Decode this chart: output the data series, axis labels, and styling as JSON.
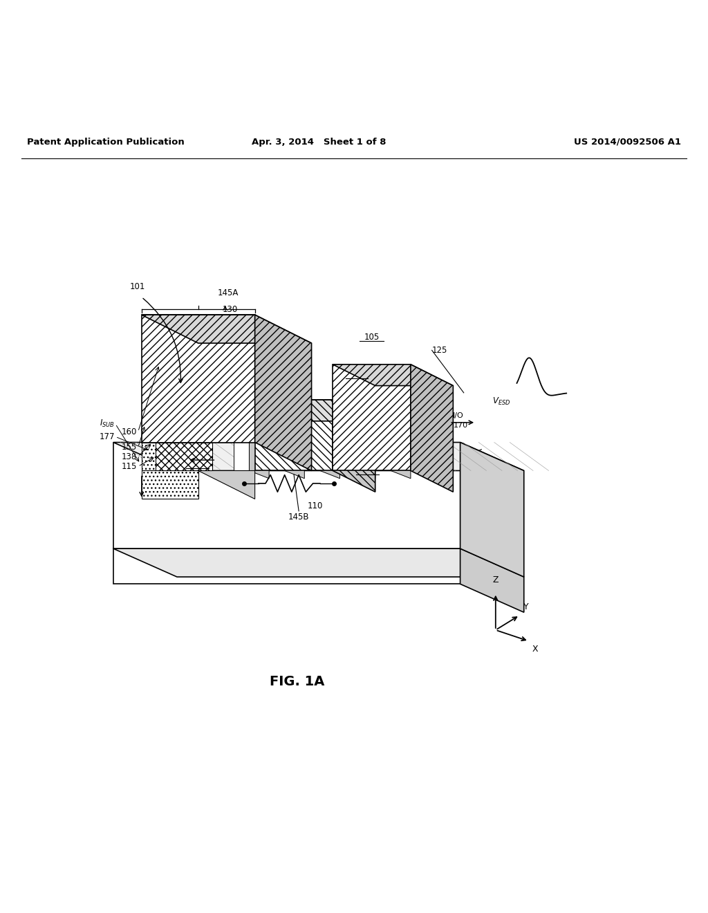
{
  "background_color": "#ffffff",
  "header_left": "Patent Application Publication",
  "header_mid": "Apr. 3, 2014   Sheet 1 of 8",
  "header_right": "US 2014/0092506 A1",
  "figure_label": "FIG. 1A",
  "label_fontsize": 8.5
}
